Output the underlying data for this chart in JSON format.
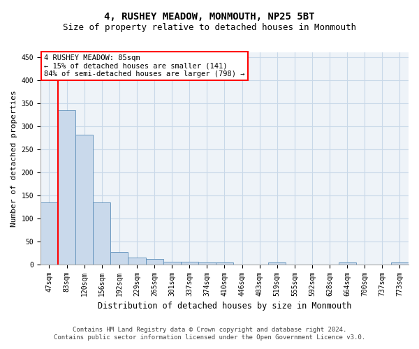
{
  "title": "4, RUSHEY MEADOW, MONMOUTH, NP25 5BT",
  "subtitle": "Size of property relative to detached houses in Monmouth",
  "xlabel": "Distribution of detached houses by size in Monmouth",
  "ylabel": "Number of detached properties",
  "footer_line1": "Contains HM Land Registry data © Crown copyright and database right 2024.",
  "footer_line2": "Contains public sector information licensed under the Open Government Licence v3.0.",
  "bar_labels": [
    "47sqm",
    "83sqm",
    "120sqm",
    "156sqm",
    "192sqm",
    "229sqm",
    "265sqm",
    "301sqm",
    "337sqm",
    "374sqm",
    "410sqm",
    "446sqm",
    "483sqm",
    "519sqm",
    "555sqm",
    "592sqm",
    "628sqm",
    "664sqm",
    "700sqm",
    "737sqm",
    "773sqm"
  ],
  "bar_heights": [
    134,
    335,
    281,
    134,
    27,
    15,
    11,
    6,
    5,
    4,
    4,
    0,
    0,
    4,
    0,
    0,
    0,
    4,
    0,
    0,
    4
  ],
  "bar_color": "#c9d9eb",
  "bar_edge_color": "#5b8db8",
  "grid_color": "#c8d8e8",
  "background_color": "#eef3f8",
  "annotation_box_text": "4 RUSHEY MEADOW: 85sqm\n← 15% of detached houses are smaller (141)\n84% of semi-detached houses are larger (798) →",
  "annotation_box_color": "white",
  "annotation_box_edge_color": "red",
  "indicator_line_color": "red",
  "ylim": [
    0,
    460
  ],
  "yticks": [
    0,
    50,
    100,
    150,
    200,
    250,
    300,
    350,
    400,
    450
  ],
  "title_fontsize": 10,
  "subtitle_fontsize": 9,
  "annotation_fontsize": 7.5,
  "xlabel_fontsize": 8.5,
  "ylabel_fontsize": 8,
  "tick_fontsize": 7,
  "footer_fontsize": 6.5
}
